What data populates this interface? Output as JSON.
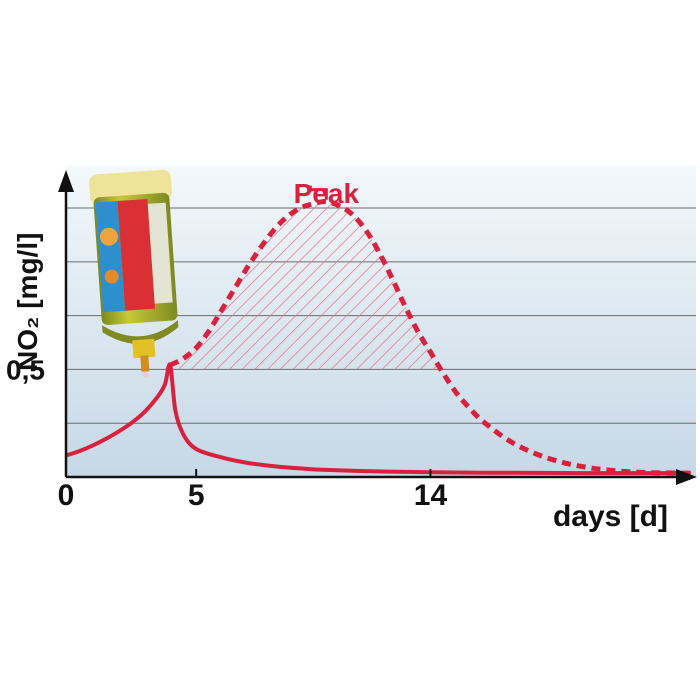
{
  "chart_data": {
    "type": "line",
    "ylabel": "NO₂ [mg/l]",
    "xlabel": "days [d]",
    "x_ticks": [
      0,
      5,
      14
    ],
    "y_ticks": [
      {
        "value": 0.5,
        "label": "0,5"
      }
    ],
    "xlim": [
      0,
      24.2
    ],
    "ylim": [
      0,
      1.45
    ],
    "grid": true,
    "annotation": "Peak",
    "colors": {
      "curve": "#d9213f",
      "hatch": "#e8707f",
      "panel_top": "#f3f8fb",
      "panel_bottom": "#c6d8e6"
    },
    "series": [
      {
        "style": "solid",
        "x": [
          0,
          0.5,
          1,
          1.5,
          2,
          2.5,
          3,
          3.5,
          3.8,
          4,
          4.2,
          4.5,
          5,
          6,
          7,
          8,
          9,
          10,
          12,
          14,
          16,
          18,
          20,
          22,
          24
        ],
        "y": [
          0.1,
          0.12,
          0.145,
          0.175,
          0.21,
          0.25,
          0.3,
          0.37,
          0.43,
          0.52,
          0.31,
          0.2,
          0.13,
          0.09,
          0.065,
          0.05,
          0.04,
          0.033,
          0.026,
          0.022,
          0.02,
          0.019,
          0.018,
          0.018,
          0.018
        ]
      },
      {
        "style": "dashed",
        "x": [
          4,
          4.5,
          5,
          5.5,
          6,
          6.5,
          7,
          7.5,
          8,
          8.5,
          9,
          9.5,
          10,
          10.5,
          11,
          11.5,
          12,
          12.5,
          13,
          13.5,
          14,
          14.5,
          15,
          15.5,
          16,
          17,
          18,
          19,
          20,
          21,
          22,
          23,
          24
        ],
        "y": [
          0.52,
          0.55,
          0.6,
          0.68,
          0.78,
          0.88,
          0.98,
          1.07,
          1.15,
          1.21,
          1.25,
          1.27,
          1.28,
          1.26,
          1.22,
          1.15,
          1.05,
          0.93,
          0.8,
          0.68,
          0.58,
          0.48,
          0.39,
          0.32,
          0.26,
          0.17,
          0.11,
          0.07,
          0.045,
          0.03,
          0.022,
          0.019,
          0.018
        ]
      }
    ]
  }
}
